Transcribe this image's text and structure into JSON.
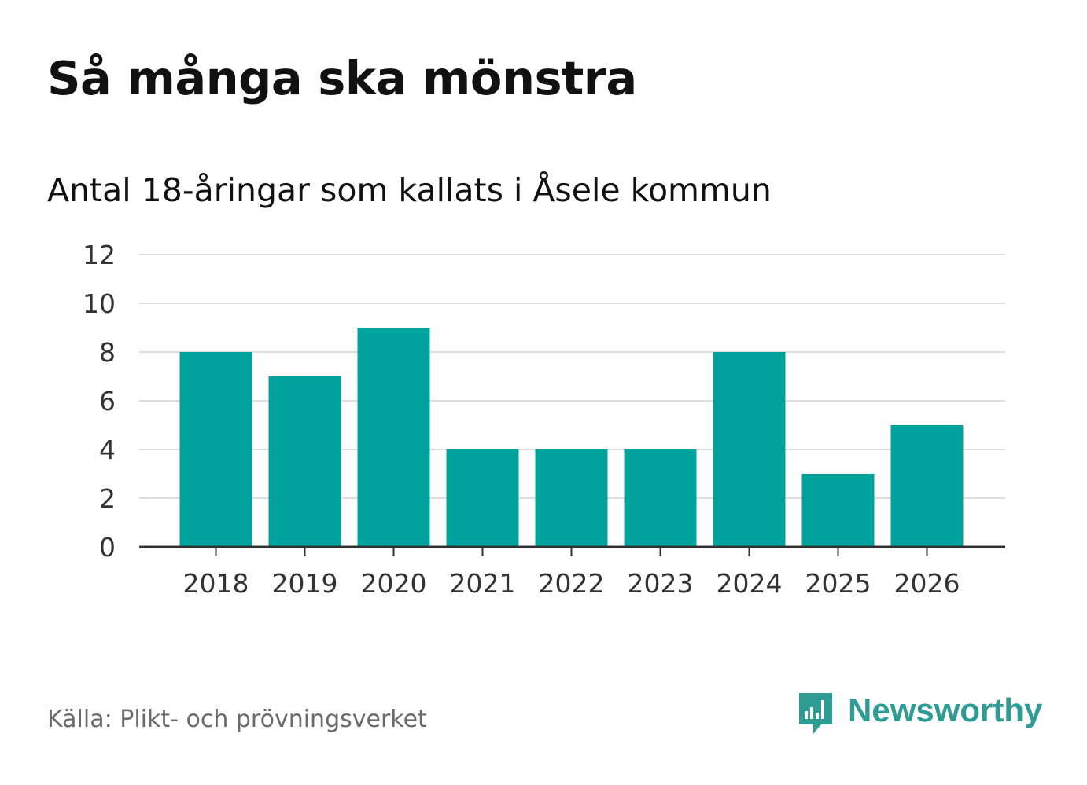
{
  "title": "Så många ska mönstra",
  "subtitle": "Antal 18-åringar som kallats i Åsele kommun",
  "source": "Källa: Plikt- och prövningsverket",
  "brand": {
    "name": "Newsworthy",
    "logo_icon": "newsworthy-chart-bubble-icon",
    "color": "#2f9c94"
  },
  "colors": {
    "bar": "#00a39b",
    "grid": "#dddddd",
    "axis": "#333333",
    "tick_text": "#333333"
  },
  "chart_data": {
    "type": "bar",
    "title": "Så många ska mönstra",
    "subtitle": "Antal 18-åringar som kallats i Åsele kommun",
    "categories": [
      "2018",
      "2019",
      "2020",
      "2021",
      "2022",
      "2023",
      "2024",
      "2025",
      "2026"
    ],
    "values": [
      8,
      7,
      9,
      4,
      4,
      4,
      8,
      3,
      5
    ],
    "yticks": [
      "0",
      "2",
      "4",
      "6",
      "8",
      "10",
      "12"
    ],
    "ylim": [
      0,
      12
    ],
    "xlabel": "",
    "ylabel": "",
    "grid": true,
    "legend": "none"
  }
}
